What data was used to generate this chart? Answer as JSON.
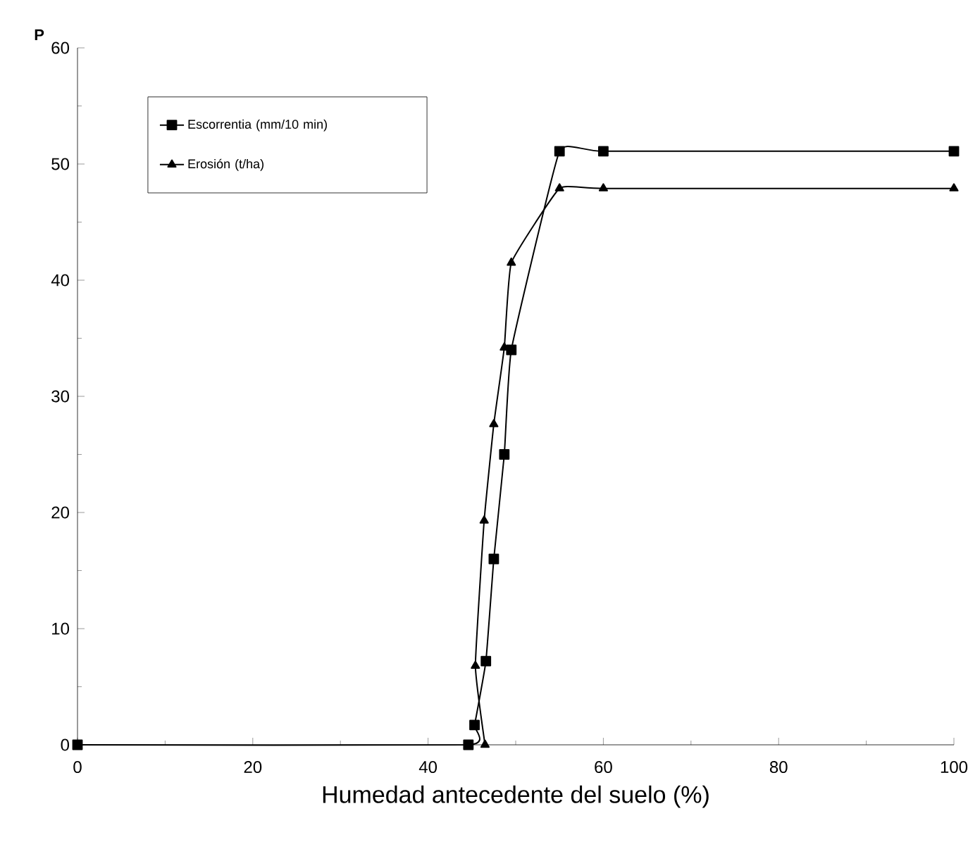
{
  "chart_data": {
    "type": "line",
    "xlabel": "Humedad antecedente del suelo (%)",
    "ylabel": "P",
    "xlim": [
      0,
      100
    ],
    "ylim": [
      0,
      60
    ],
    "xticks": [
      0,
      20,
      40,
      60,
      80,
      100
    ],
    "yticks": [
      0,
      10,
      20,
      30,
      40,
      50,
      60
    ],
    "grid": false,
    "legend": "top left",
    "series": [
      {
        "name": "Escorrentia (mm/10 min)",
        "color": "#000000",
        "marker": "square",
        "x": [
          0,
          44.6,
          45.3,
          46.6,
          47.5,
          48.7,
          49.5,
          55,
          60,
          100
        ],
        "values": [
          0,
          0,
          1.7,
          7.2,
          16.0,
          25.0,
          34.0,
          51.1,
          51.1,
          51.1
        ]
      },
      {
        "name": "Erosión (t/ha)",
        "color": "#000000",
        "marker": "triangle",
        "x": [
          46.5,
          45.4,
          46.4,
          47.5,
          48.7,
          49.5,
          55,
          60,
          100
        ],
        "values": [
          0,
          6.8,
          19.3,
          27.6,
          34.2,
          41.5,
          47.9,
          47.9,
          47.9
        ]
      }
    ]
  }
}
